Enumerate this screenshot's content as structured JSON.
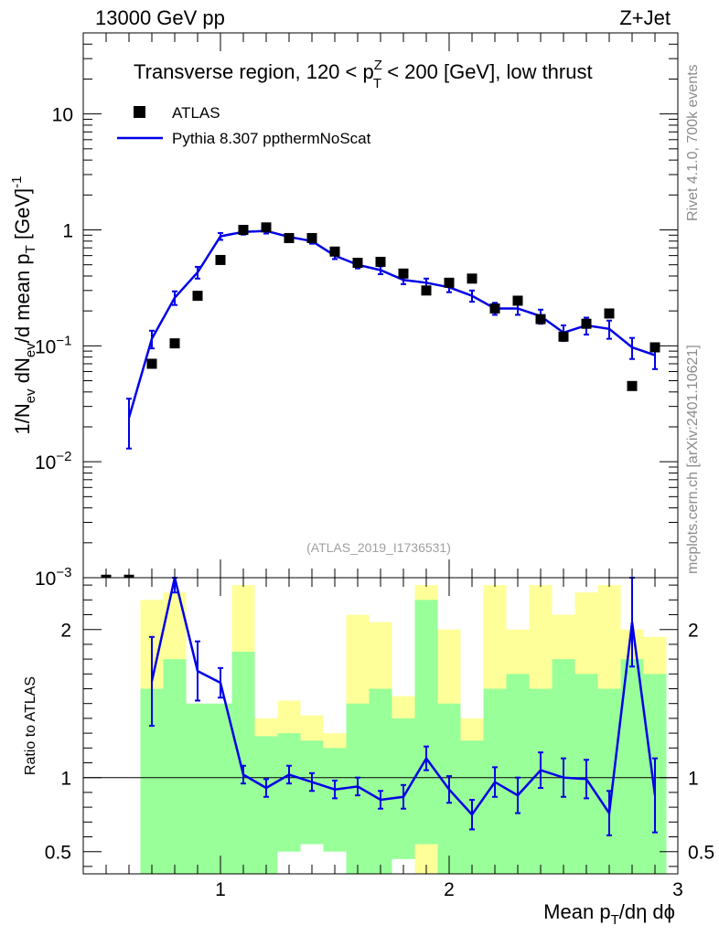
{
  "header": {
    "left": "13000 GeV pp",
    "right": "Z+Jet"
  },
  "side_labels": {
    "rivet": "Rivet 4.1.0,  700k events",
    "mcplots": "mcplots.cern.ch [arXiv:2401.10621]"
  },
  "colors": {
    "mc_line": "#0000e6",
    "data_marker": "#000000",
    "band_inner": "#99ff99",
    "band_outer": "#ffff99"
  },
  "chart_data": [
    {
      "type": "scatter",
      "panel": "main",
      "title_parts": {
        "prefix": "Transverse region, 120 < p",
        "sup": "Z",
        "sub": "T",
        "suffix": " < 200 [GeV], low thrust"
      },
      "ylabel_parts": [
        "1/N",
        "ev",
        " dN",
        "ev",
        "/d mean p",
        "T",
        " [GeV]",
        "-1"
      ],
      "xlabel_parts": [
        "Mean p",
        "T",
        "/dη dϕ"
      ],
      "yscale": "log",
      "xlim": [
        0.4,
        3.0
      ],
      "ylim": [
        0.001,
        50
      ],
      "yticks": [
        {
          "v": 0.001,
          "base": "10",
          "exp": "−3"
        },
        {
          "v": 0.01,
          "base": "10",
          "exp": "−2"
        },
        {
          "v": 0.1,
          "base": "10",
          "exp": "−1"
        },
        {
          "v": 1,
          "text": "1"
        },
        {
          "v": 10,
          "text": "10"
        }
      ],
      "legend": {
        "position": "top-left",
        "entries": [
          {
            "label": "ATLAS",
            "kind": "marker"
          },
          {
            "label": "Pythia 8.307 ppthermNoScat",
            "kind": "line"
          }
        ]
      },
      "watermark": "(ATLAS_2019_I1736531)",
      "series": [
        {
          "name": "ATLAS",
          "x": [
            0.5,
            0.6,
            0.7,
            0.8,
            0.9,
            1.0,
            1.1,
            1.2,
            1.3,
            1.4,
            1.5,
            1.6,
            1.7,
            1.8,
            1.9,
            2.0,
            2.1,
            2.2,
            2.3,
            2.4,
            2.5,
            2.6,
            2.7,
            2.8,
            2.9
          ],
          "y": [
            0.00096,
            0.00096,
            0.07,
            0.105,
            0.27,
            0.55,
            1.0,
            1.05,
            0.85,
            0.85,
            0.65,
            0.52,
            0.53,
            0.42,
            0.3,
            0.35,
            0.38,
            0.21,
            0.245,
            0.17,
            0.12,
            0.155,
            0.19,
            0.045,
            0.097
          ]
        },
        {
          "name": "Pythia 8.307 ppthermNoScat",
          "x": [
            0.6,
            0.7,
            0.8,
            0.9,
            1.0,
            1.1,
            1.2,
            1.3,
            1.4,
            1.5,
            1.6,
            1.7,
            1.8,
            1.9,
            2.0,
            2.1,
            2.2,
            2.3,
            2.4,
            2.5,
            2.6,
            2.7,
            2.8,
            2.9
          ],
          "y": [
            0.024,
            0.115,
            0.26,
            0.43,
            0.88,
            0.96,
            0.98,
            0.87,
            0.8,
            0.6,
            0.5,
            0.45,
            0.37,
            0.35,
            0.32,
            0.27,
            0.21,
            0.21,
            0.18,
            0.13,
            0.15,
            0.14,
            0.097,
            0.083
          ],
          "yerr": [
            0.011,
            0.02,
            0.035,
            0.05,
            0.06,
            0.05,
            0.05,
            0.04,
            0.04,
            0.04,
            0.035,
            0.035,
            0.03,
            0.03,
            0.03,
            0.03,
            0.025,
            0.025,
            0.025,
            0.02,
            0.025,
            0.025,
            0.02,
            0.02
          ]
        }
      ]
    },
    {
      "type": "line",
      "panel": "ratio",
      "ylabel": "Ratio to ATLAS",
      "xlim": [
        0.4,
        3.0
      ],
      "ylim": [
        0.35,
        2.35
      ],
      "xticks": [
        "1",
        "2",
        "3"
      ],
      "yticks": [
        "0.5",
        "1",
        "2"
      ],
      "bands": {
        "x_edges": [
          0.65,
          0.75,
          0.85,
          0.95,
          1.05,
          1.15,
          1.25,
          1.35,
          1.45,
          1.55,
          1.65,
          1.75,
          1.85,
          1.95,
          2.05,
          2.15,
          2.25,
          2.35,
          2.45,
          2.55,
          2.65,
          2.75,
          2.85,
          2.95
        ],
        "inner_lo": [
          0.35,
          0.35,
          0.35,
          0.35,
          0.35,
          0.35,
          0.5,
          0.55,
          0.5,
          0.35,
          0.35,
          0.45,
          0.55,
          0.35,
          0.35,
          0.35,
          0.35,
          0.35,
          0.35,
          0.35,
          0.35,
          0.35,
          0.35
        ],
        "inner_hi": [
          1.6,
          1.8,
          1.5,
          1.5,
          1.85,
          1.28,
          1.3,
          1.25,
          1.2,
          1.5,
          1.6,
          1.4,
          2.2,
          1.5,
          1.25,
          1.6,
          1.7,
          1.6,
          1.8,
          1.7,
          1.6,
          1.8,
          1.7
        ],
        "outer_lo": [
          0.35,
          0.35,
          0.7,
          0.69,
          0.35,
          0.84,
          0.63,
          0.68,
          0.72,
          0.35,
          0.35,
          0.48,
          0.35,
          0.35,
          0.35,
          0.35,
          0.35,
          0.53,
          0.35,
          0.35,
          0.35,
          0.35,
          0.54
        ],
        "outer_hi": [
          2.2,
          2.25,
          1.4,
          1.4,
          2.3,
          1.4,
          1.52,
          1.42,
          1.3,
          2.1,
          2.05,
          1.55,
          2.3,
          2.0,
          1.4,
          2.3,
          2.0,
          2.3,
          2.1,
          2.25,
          2.3,
          2.0,
          1.95
        ]
      },
      "series": [
        {
          "name": "Pythia 8.307 ppthermNoScat / ATLAS",
          "x": [
            0.7,
            0.8,
            0.9,
            1.0,
            1.1,
            1.2,
            1.3,
            1.4,
            1.5,
            1.6,
            1.7,
            1.8,
            1.9,
            2.0,
            2.1,
            2.2,
            2.3,
            2.4,
            2.5,
            2.6,
            2.7,
            2.8,
            2.9
          ],
          "y": [
            1.65,
            2.35,
            1.72,
            1.64,
            1.02,
            0.93,
            1.02,
            0.97,
            0.92,
            0.94,
            0.85,
            0.87,
            1.13,
            0.92,
            0.75,
            0.97,
            0.88,
            1.05,
            1.0,
            0.99,
            0.76,
            2.05,
            0.88
          ],
          "yerr_lo": [
            0.3,
            0.1,
            0.2,
            0.1,
            0.06,
            0.06,
            0.06,
            0.06,
            0.06,
            0.06,
            0.06,
            0.08,
            0.08,
            0.09,
            0.1,
            0.1,
            0.12,
            0.12,
            0.13,
            0.13,
            0.15,
            0.3,
            0.25
          ],
          "yerr_hi": [
            0.3,
            0.1,
            0.2,
            0.1,
            0.06,
            0.06,
            0.06,
            0.06,
            0.06,
            0.06,
            0.06,
            0.08,
            0.08,
            0.09,
            0.1,
            0.1,
            0.12,
            0.12,
            0.13,
            0.13,
            0.15,
            0.3,
            0.25
          ]
        }
      ],
      "reference_line": 1
    }
  ]
}
